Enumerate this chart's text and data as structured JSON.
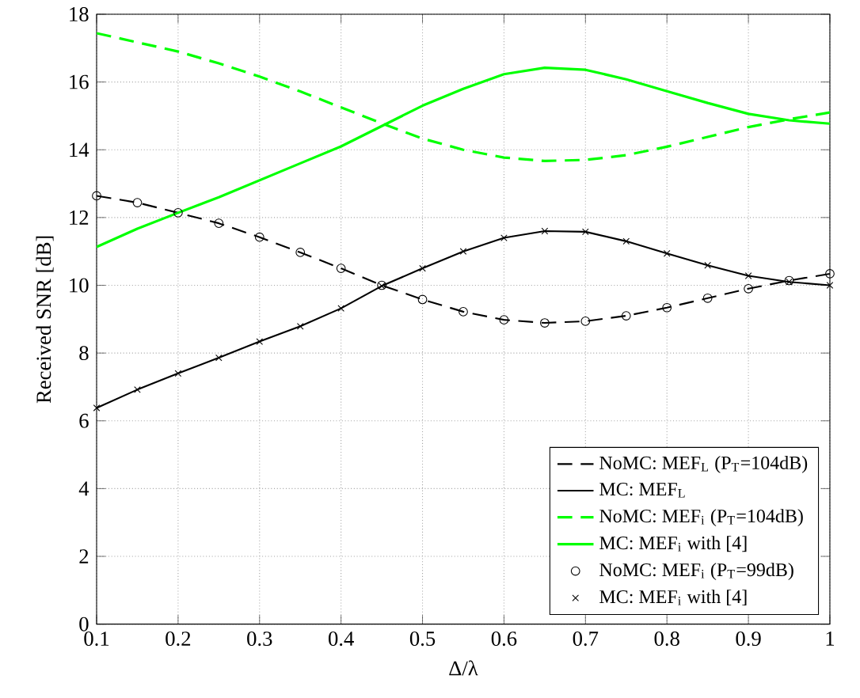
{
  "chart_data": {
    "type": "line",
    "xlabel": "Δ/λ",
    "ylabel": "Received SNR [dB]",
    "x": [
      0.1,
      0.15,
      0.2,
      0.25,
      0.3,
      0.35,
      0.4,
      0.45,
      0.5,
      0.55,
      0.6,
      0.65,
      0.7,
      0.75,
      0.8,
      0.85,
      0.9,
      0.95,
      1.0
    ],
    "xlim": [
      0.1,
      1.0
    ],
    "ylim": [
      0,
      18
    ],
    "xticks": [
      0.1,
      0.2,
      0.3,
      0.4,
      0.5,
      0.6,
      0.7,
      0.8,
      0.9,
      {
        "value": 1.0,
        "label": "1"
      }
    ],
    "yticks": [
      0,
      2,
      4,
      6,
      8,
      10,
      12,
      14,
      16,
      18
    ],
    "grid": true,
    "legend": "bottom right",
    "series": [
      {
        "name": "NoMC: MEF$_{L}$ (P$_{T}$=104dB)",
        "color": "#000000",
        "line_style": "dashed",
        "marker": "none",
        "values": [
          12.64,
          12.44,
          12.14,
          11.83,
          11.42,
          10.97,
          10.5,
          10.0,
          9.58,
          9.22,
          8.98,
          8.89,
          8.94,
          9.1,
          9.34,
          9.62,
          9.9,
          10.14,
          10.34
        ]
      },
      {
        "name": "MC: MEF$_{L}$",
        "color": "#000000",
        "line_style": "solid",
        "marker": "none",
        "values": [
          6.38,
          6.92,
          7.4,
          7.86,
          8.34,
          8.79,
          9.32,
          9.98,
          10.5,
          11.0,
          11.4,
          11.6,
          11.58,
          11.3,
          10.94,
          10.59,
          10.28,
          10.1,
          10.0
        ]
      },
      {
        "name": "NoMC: MEF$_{i}$ (P$_{T}$=104dB)",
        "color": "#00ff00",
        "line_style": "dashed",
        "marker": "none",
        "values": [
          17.44,
          17.17,
          16.9,
          16.55,
          16.16,
          15.72,
          15.25,
          14.78,
          14.33,
          14.0,
          13.77,
          13.67,
          13.7,
          13.84,
          14.09,
          14.38,
          14.67,
          14.9,
          15.1
        ]
      },
      {
        "name": "MC: MEF$_{i}$ with [4]",
        "color": "#00ff00",
        "line_style": "solid",
        "marker": "none",
        "values": [
          11.13,
          11.67,
          12.14,
          12.6,
          13.1,
          13.6,
          14.1,
          14.7,
          15.3,
          15.8,
          16.23,
          16.42,
          16.36,
          16.08,
          15.73,
          15.38,
          15.06,
          14.87,
          14.77
        ]
      },
      {
        "name": "NoMC: MEF$_{i}$ (P$_{T}$=99dB)",
        "type": "scatter",
        "color": "#000000",
        "marker": "circle",
        "values": [
          12.64,
          12.44,
          12.14,
          11.83,
          11.42,
          10.97,
          10.5,
          10.0,
          9.58,
          9.22,
          8.98,
          8.89,
          8.94,
          9.1,
          9.34,
          9.62,
          9.9,
          10.14,
          10.34
        ]
      },
      {
        "name": "MC: MEF$_{i}$ with [4]",
        "type": "scatter",
        "color": "#000000",
        "marker": "cross",
        "values": [
          6.38,
          6.92,
          7.4,
          7.86,
          8.34,
          8.79,
          9.32,
          9.98,
          10.5,
          11.0,
          11.4,
          11.6,
          11.58,
          11.3,
          10.94,
          10.59,
          10.28,
          10.1,
          10.0
        ]
      }
    ]
  }
}
